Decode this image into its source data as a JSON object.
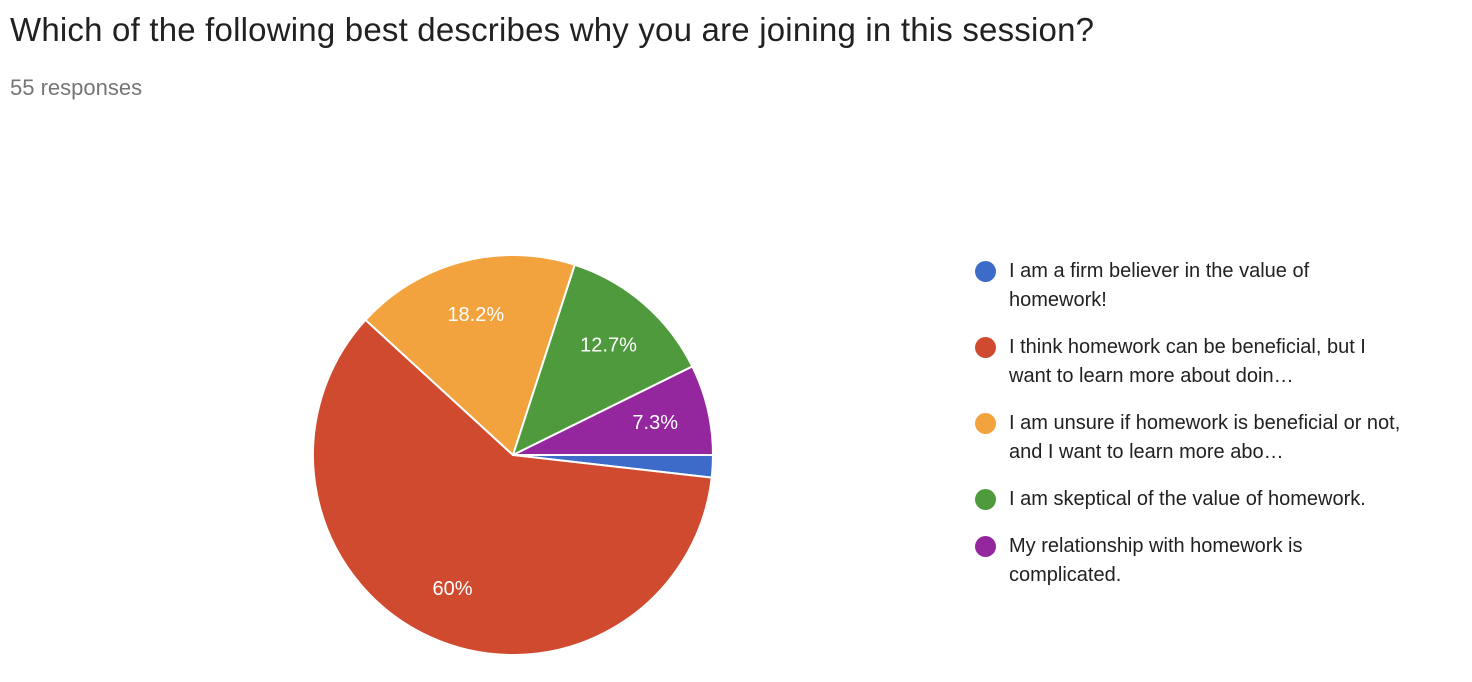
{
  "header": {
    "title": "Which of the following best describes why you are joining in this session?",
    "response_count": "55 responses"
  },
  "chart_data": {
    "type": "pie",
    "title": "Which of the following best describes why you are joining in this session?",
    "subtitle": "55 responses",
    "total_responses": 55,
    "legend_position": "right",
    "start_angle": "3-oclock",
    "direction": "clockwise",
    "slices": [
      {
        "label": "I am a firm believer in the value of homework!",
        "percent": 1.8,
        "display_label": "",
        "color": "#3c6bc9"
      },
      {
        "label": "I think homework can be beneficial, but I want to learn more about doin…",
        "percent": 60,
        "display_label": "60%",
        "color": "#d04a2f"
      },
      {
        "label": "I am unsure if homework is beneficial or not, and I want to learn more abo…",
        "percent": 18.2,
        "display_label": "18.2%",
        "color": "#f2a33d"
      },
      {
        "label": "I am skeptical of the value of homework.",
        "percent": 12.7,
        "display_label": "12.7%",
        "color": "#4e9a3d"
      },
      {
        "label": "My relationship with homework is complicated.",
        "percent": 7.3,
        "display_label": "7.3%",
        "color": "#94279e"
      }
    ],
    "slice_label_color": "#ffffff",
    "slice_separator_color": "#ffffff"
  }
}
